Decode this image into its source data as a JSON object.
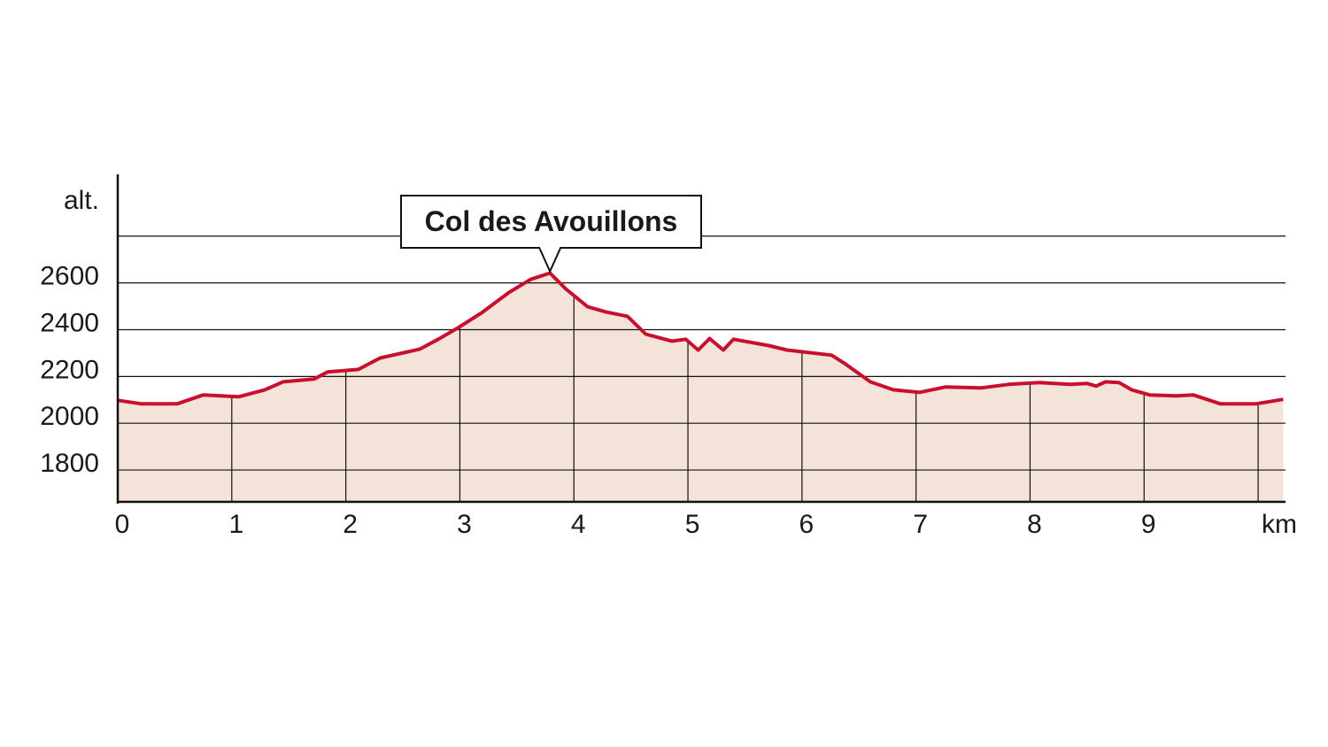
{
  "chart_data": {
    "type": "area",
    "y_label": "alt.",
    "x_label": "km",
    "annotation": "Col des Avouillons",
    "x": [
      0,
      0.21,
      0.52,
      0.75,
      1.06,
      1.29,
      1.45,
      1.72,
      1.84,
      2.11,
      2.3,
      2.65,
      2.81,
      2.97,
      3.19,
      3.43,
      3.62,
      3.79,
      3.93,
      4.12,
      4.28,
      4.47,
      4.63,
      4.86,
      4.98,
      5.09,
      5.19,
      5.31,
      5.4,
      5.71,
      5.87,
      6.26,
      6.37,
      6.6,
      6.8,
      7.03,
      7.26,
      7.57,
      7.81,
      8.08,
      8.35,
      8.5,
      8.58,
      8.66,
      8.78,
      8.89,
      9.05,
      9.28,
      9.43,
      9.67,
      9.98,
      10.22
    ],
    "series": [
      {
        "color": "#c8102e",
        "fill": "#f3e3d8",
        "values": [
          2098,
          2083,
          2083,
          2121,
          2113,
          2143,
          2177,
          2189,
          2219,
          2230,
          2279,
          2317,
          2359,
          2404,
          2472,
          2559,
          2615,
          2642,
          2574,
          2498,
          2476,
          2457,
          2381,
          2351,
          2359,
          2313,
          2362,
          2313,
          2359,
          2332,
          2313,
          2291,
          2257,
          2177,
          2143,
          2132,
          2155,
          2151,
          2166,
          2174,
          2166,
          2170,
          2159,
          2177,
          2174,
          2143,
          2121,
          2117,
          2121,
          2083,
          2083,
          2102
        ]
      }
    ],
    "xlim": [
      0,
      10.24
    ],
    "ylim": [
      1664,
      3064
    ],
    "xticks": [
      0,
      1,
      2,
      3,
      4,
      5,
      6,
      7,
      8,
      9
    ],
    "xgrid": [
      1,
      2,
      3,
      4,
      5,
      6,
      7,
      8,
      9,
      10
    ],
    "yticks": [
      1800,
      2000,
      2200,
      2400,
      2600
    ],
    "ygrid": [
      1800,
      2000,
      2200,
      2400,
      2600,
      2800
    ]
  }
}
